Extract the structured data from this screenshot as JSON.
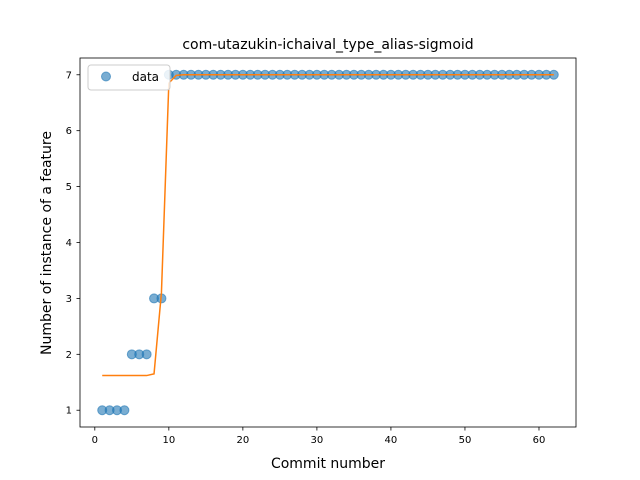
{
  "chart_data": {
    "type": "scatter",
    "title": "com-utazukin-ichaival_type_alias-sigmoid",
    "xlabel": "Commit number",
    "ylabel": "Number of instance of a feature",
    "xlim": [
      -2,
      65
    ],
    "ylim": [
      0.7,
      7.3
    ],
    "xticks": [
      0,
      10,
      20,
      30,
      40,
      50,
      60
    ],
    "yticks": [
      1,
      2,
      3,
      4,
      5,
      6,
      7
    ],
    "grid": false,
    "legend": {
      "placement": "top-left",
      "entries": [
        "data"
      ]
    },
    "colors": {
      "data": "#1f77b4",
      "fit": "#ff7f0e"
    },
    "series": [
      {
        "name": "data",
        "kind": "scatter",
        "x": [
          1,
          2,
          3,
          4,
          5,
          6,
          7,
          8,
          9,
          10,
          11,
          12,
          13,
          14,
          15,
          16,
          17,
          18,
          19,
          20,
          21,
          22,
          23,
          24,
          25,
          26,
          27,
          28,
          29,
          30,
          31,
          32,
          33,
          34,
          35,
          36,
          37,
          38,
          39,
          40,
          41,
          42,
          43,
          44,
          45,
          46,
          47,
          48,
          49,
          50,
          51,
          52,
          53,
          54,
          55,
          56,
          57,
          58,
          59,
          60,
          61,
          62
        ],
        "y": [
          1,
          1,
          1,
          1,
          2,
          2,
          2,
          3,
          3,
          7,
          7,
          7,
          7,
          7,
          7,
          7,
          7,
          7,
          7,
          7,
          7,
          7,
          7,
          7,
          7,
          7,
          7,
          7,
          7,
          7,
          7,
          7,
          7,
          7,
          7,
          7,
          7,
          7,
          7,
          7,
          7,
          7,
          7,
          7,
          7,
          7,
          7,
          7,
          7,
          7,
          7,
          7,
          7,
          7,
          7,
          7,
          7,
          7,
          7,
          7,
          7,
          7
        ]
      },
      {
        "kind": "line",
        "x": [
          1,
          2,
          3,
          4,
          5,
          6,
          7,
          8,
          9,
          10,
          11,
          12,
          13,
          14,
          15,
          16,
          17,
          18,
          19,
          20,
          21,
          22,
          23,
          24,
          25,
          26,
          27,
          28,
          29,
          30,
          31,
          32,
          33,
          34,
          35,
          36,
          37,
          38,
          39,
          40,
          41,
          42,
          43,
          44,
          45,
          46,
          47,
          48,
          49,
          50,
          51,
          52,
          53,
          54,
          55,
          56,
          57,
          58,
          59,
          60,
          61,
          62
        ],
        "y": [
          1.62,
          1.62,
          1.62,
          1.62,
          1.62,
          1.62,
          1.62,
          1.65,
          3.1,
          6.85,
          6.99,
          7,
          7,
          7,
          7,
          7,
          7,
          7,
          7,
          7,
          7,
          7,
          7,
          7,
          7,
          7,
          7,
          7,
          7,
          7,
          7,
          7,
          7,
          7,
          7,
          7,
          7,
          7,
          7,
          7,
          7,
          7,
          7,
          7,
          7,
          7,
          7,
          7,
          7,
          7,
          7,
          7,
          7,
          7,
          7,
          7,
          7,
          7,
          7,
          7,
          7,
          7
        ]
      }
    ]
  }
}
